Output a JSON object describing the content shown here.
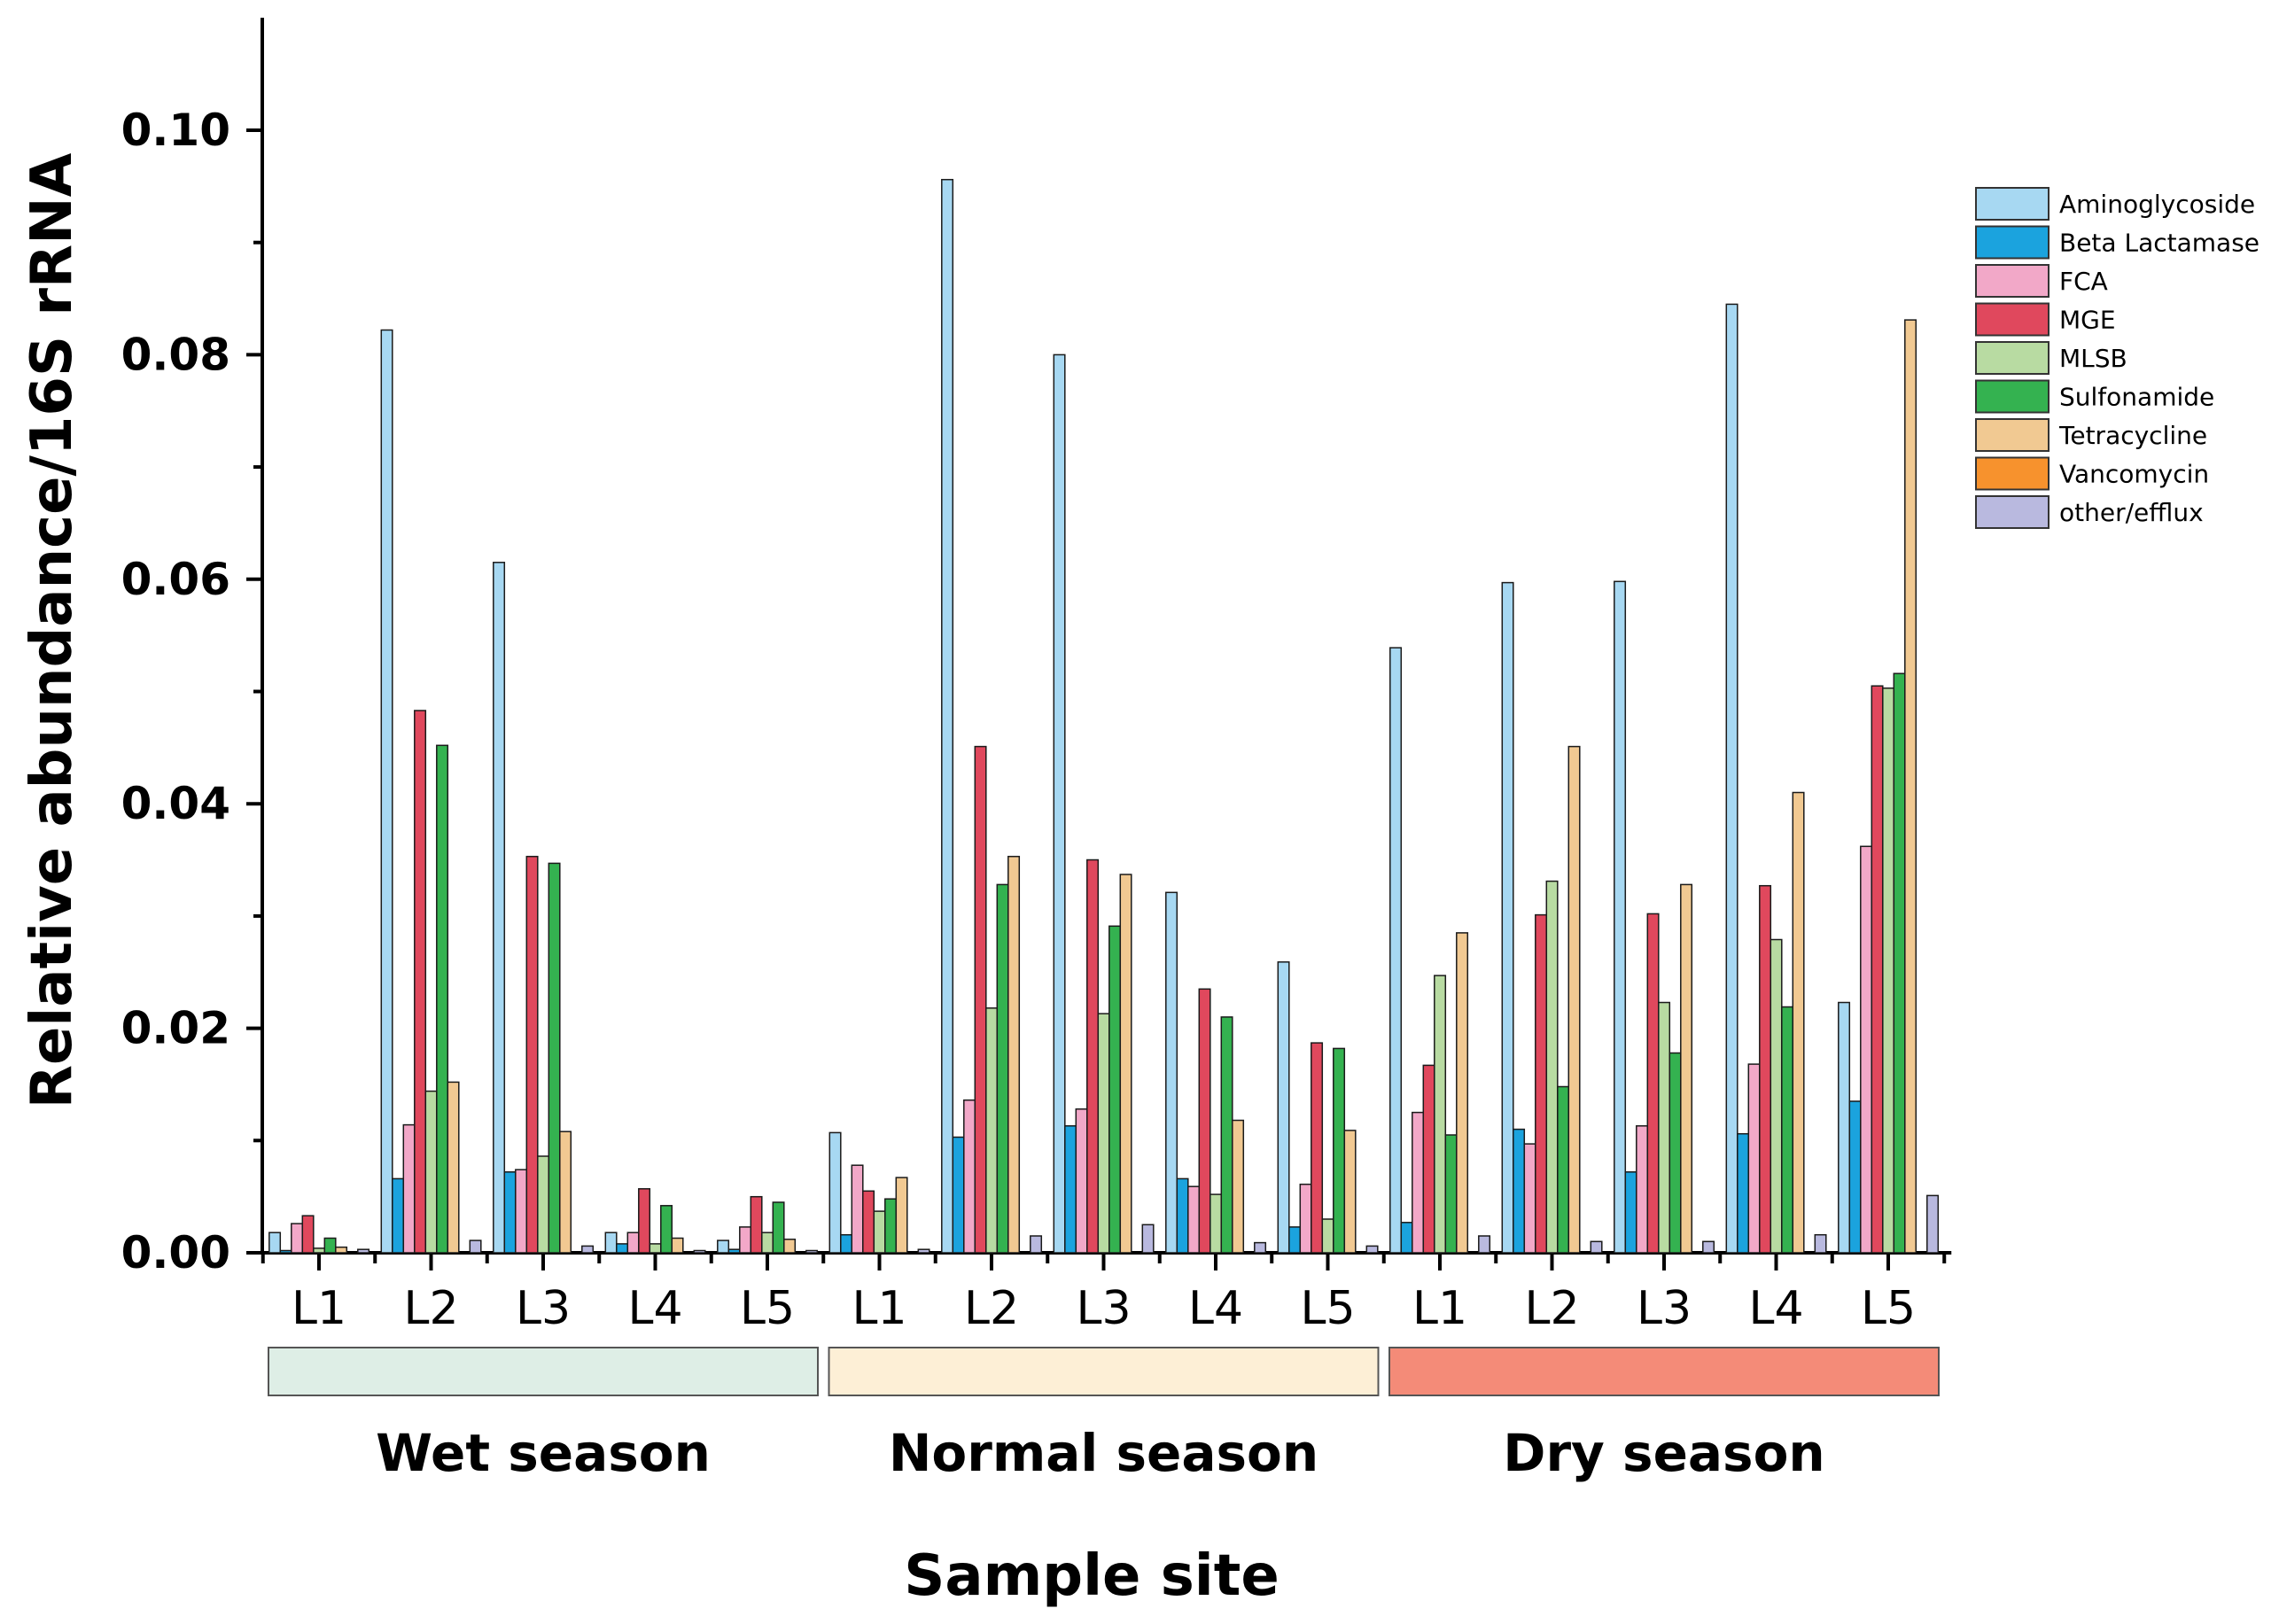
{
  "chart_data": {
    "type": "bar",
    "title": "",
    "xlabel": "Sample site",
    "ylabel": "Relative abundance/16S rRNA",
    "ylim": [
      0,
      0.11
    ],
    "yticks": [
      "0.00",
      "0.02",
      "0.04",
      "0.06",
      "0.08",
      "0.10"
    ],
    "ytick_values": [
      0,
      0.02,
      0.04,
      0.06,
      0.08,
      0.1
    ],
    "grid": false,
    "legend_position": "top-right",
    "categories": [
      "L1",
      "L2",
      "L3",
      "L4",
      "L5",
      "L1",
      "L2",
      "L3",
      "L4",
      "L5",
      "L1",
      "L2",
      "L3",
      "L4",
      "L5"
    ],
    "groups": [
      {
        "name": "Wet season",
        "color": "#deeee6",
        "start": 0,
        "end": 4
      },
      {
        "name": "Normal season",
        "color": "#fdefd6",
        "start": 5,
        "end": 9
      },
      {
        "name": "Dry season",
        "color": "#f48b78",
        "start": 10,
        "end": 14
      }
    ],
    "series": [
      {
        "name": "Aminoglycoside",
        "color": "#a7d8f2",
        "values": [
          0.0018,
          0.0822,
          0.0615,
          0.0018,
          0.0011,
          0.0107,
          0.0956,
          0.08,
          0.0321,
          0.0259,
          0.0539,
          0.0597,
          0.0598,
          0.0845,
          0.0223
        ]
      },
      {
        "name": "Beta Lactamase",
        "color": "#1ba3de",
        "values": [
          0.0002,
          0.0066,
          0.0072,
          0.0008,
          0.0003,
          0.0016,
          0.0103,
          0.0113,
          0.0066,
          0.0023,
          0.0027,
          0.011,
          0.0072,
          0.0106,
          0.0135
        ]
      },
      {
        "name": "FCA",
        "color": "#f2a8c8",
        "values": [
          0.0026,
          0.0114,
          0.0074,
          0.0018,
          0.0023,
          0.0078,
          0.0136,
          0.0128,
          0.0059,
          0.0061,
          0.0125,
          0.0097,
          0.0113,
          0.0168,
          0.0362
        ]
      },
      {
        "name": "MGE",
        "color": "#e0485d",
        "values": [
          0.0033,
          0.0483,
          0.0353,
          0.0057,
          0.005,
          0.0055,
          0.0451,
          0.035,
          0.0235,
          0.0187,
          0.0167,
          0.0301,
          0.0302,
          0.0327,
          0.0505
        ]
      },
      {
        "name": "MLSB",
        "color": "#b8dba2",
        "values": [
          0.0004,
          0.0144,
          0.0086,
          0.0008,
          0.0018,
          0.0037,
          0.0218,
          0.0213,
          0.0052,
          0.003,
          0.0247,
          0.0331,
          0.0223,
          0.0279,
          0.0503
        ]
      },
      {
        "name": "Sulfonamide",
        "color": "#34b250",
        "values": [
          0.0013,
          0.0452,
          0.0347,
          0.0042,
          0.0045,
          0.0048,
          0.0328,
          0.0291,
          0.021,
          0.0182,
          0.0105,
          0.0148,
          0.0178,
          0.0219,
          0.0516
        ]
      },
      {
        "name": "Tetracycline",
        "color": "#f1c992",
        "values": [
          0.0005,
          0.0152,
          0.0108,
          0.0013,
          0.0012,
          0.0067,
          0.0353,
          0.0337,
          0.0118,
          0.0109,
          0.0285,
          0.0451,
          0.0328,
          0.041,
          0.0831
        ]
      },
      {
        "name": "Vancomycin",
        "color": "#f7922d",
        "values": [
          0,
          0,
          0,
          0,
          0,
          0,
          0,
          0,
          0,
          0,
          0,
          0,
          0,
          0,
          0
        ]
      },
      {
        "name": "other/efflux",
        "color": "#b9b9df",
        "values": [
          0.0003,
          0.0011,
          0.0006,
          0.0002,
          0.0002,
          0.0003,
          0.0015,
          0.0025,
          0.0009,
          0.0006,
          0.0015,
          0.001,
          0.001,
          0.0016,
          0.0051
        ]
      }
    ]
  }
}
